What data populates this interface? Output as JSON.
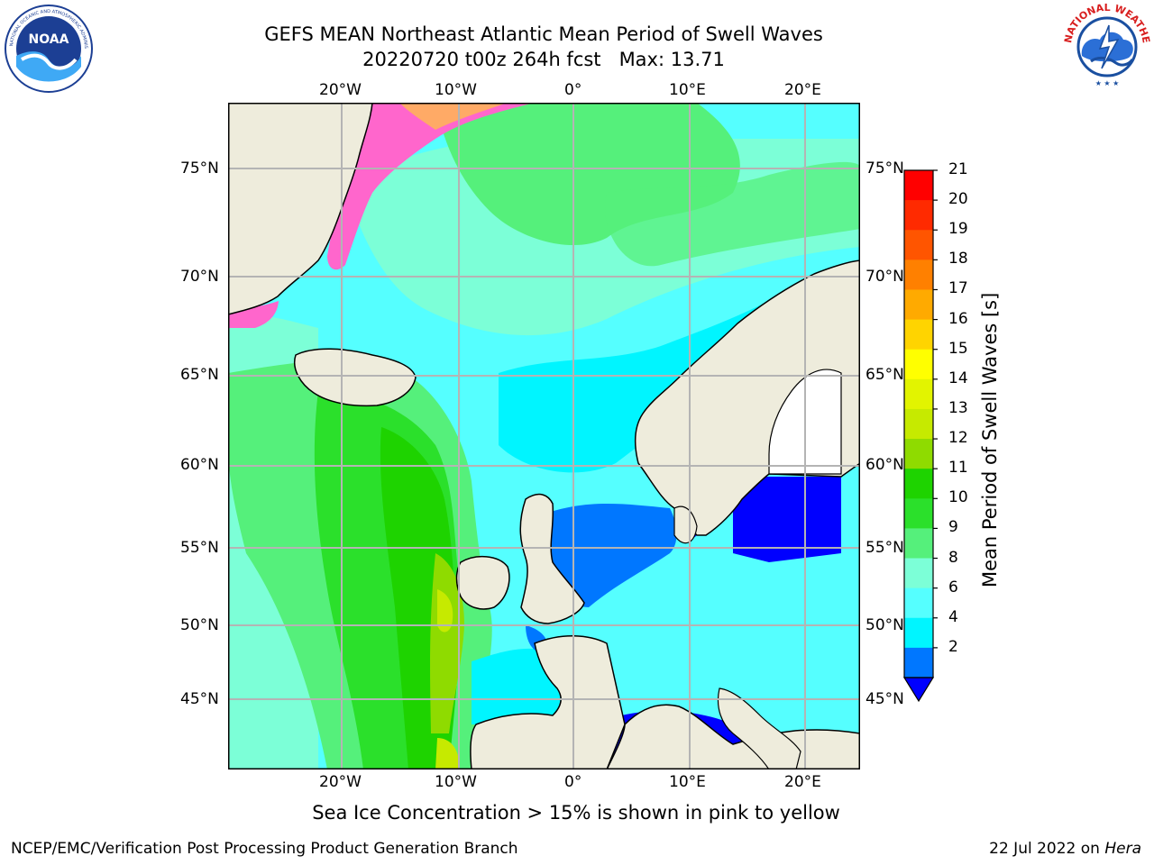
{
  "title": {
    "line1": "GEFS MEAN Northeast Atlantic Mean Period of Swell Waves",
    "line2": "20220720 t00z 264h fcst   Max: 13.71"
  },
  "logos": {
    "left": "noa-logo",
    "right": "nws-logo",
    "left_text": "NATIONAL OCEANIC AND ATMOSPHERIC ADMINISTRATION · U.S. DEPARTMENT OF COMMERCE",
    "left_center": "NOAA",
    "right_text": "NATIONAL WEATHER SERVICE"
  },
  "map": {
    "lon_labels": [
      "20°W",
      "10°W",
      "0°",
      "10°E",
      "20°E"
    ],
    "lat_labels": [
      "75°N",
      "70°N",
      "65°N",
      "60°N",
      "55°N",
      "50°N",
      "45°N"
    ],
    "land_color": "#eeecdc",
    "grid_color": "#b4b4b4"
  },
  "colorbar": {
    "label": "Mean Period of Swell Waves [s]",
    "ticks": [
      "21",
      "20",
      "19",
      "18",
      "17",
      "16",
      "15",
      "14",
      "13",
      "12",
      "11",
      "10",
      "9",
      "8",
      "6",
      "4",
      "2"
    ],
    "colors": [
      "#ff0000",
      "#ff2a00",
      "#ff5500",
      "#ff8000",
      "#ffaa00",
      "#ffd400",
      "#ffff00",
      "#e2f400",
      "#c6ea00",
      "#8fdb00",
      "#1ed300",
      "#2be02b",
      "#55f07b",
      "#7cffd7",
      "#55ffff",
      "#00f5ff",
      "#0077ff"
    ],
    "under_color": "#0000ff"
  },
  "caption": "Sea Ice Concentration > 15% is shown in pink to yellow",
  "footer": {
    "left": "NCEP/EMC/Verification Post Processing Product Generation Branch",
    "right_prefix": "22 Jul 2022 on ",
    "right_italic": "Hera"
  }
}
